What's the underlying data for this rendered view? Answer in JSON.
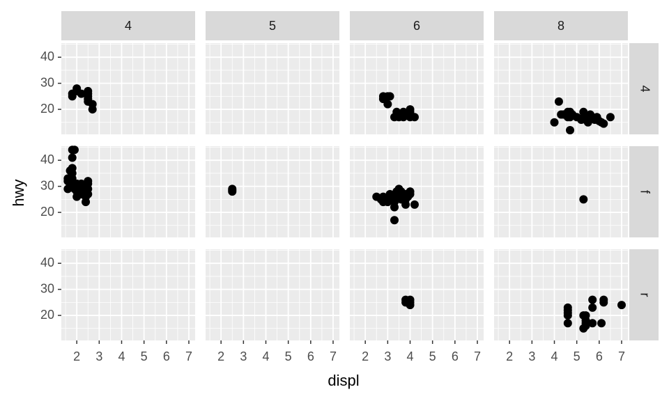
{
  "chart_data": {
    "type": "scatter",
    "x_label": "displ",
    "y_label": "hwy",
    "col_labels": [
      "4",
      "5",
      "6",
      "8"
    ],
    "row_labels": [
      "4",
      "f",
      "r"
    ],
    "xlim": [
      1.31,
      7.28
    ],
    "ylim": [
      10.4,
      45.4
    ],
    "xticks": [
      2,
      3,
      4,
      5,
      6,
      7
    ],
    "yticks": [
      20,
      30,
      40
    ],
    "color": "#000000",
    "grid": true,
    "panels": [
      [
        {
          "x": [
            1.8,
            1.8,
            2.0,
            2.0,
            2.2,
            2.5,
            2.5,
            2.5,
            2.5,
            2.7,
            2.7,
            2.5
          ],
          "values": [
            25,
            26,
            28,
            27,
            26,
            27,
            26,
            25,
            23,
            22,
            20,
            24
          ]
        },
        {
          "x": [],
          "values": []
        },
        {
          "x": [
            2.8,
            2.8,
            3.0,
            3.0,
            3.1,
            3.3,
            3.4,
            3.5,
            3.7,
            3.7,
            4.0,
            4.0,
            4.0,
            4.2,
            3.8
          ],
          "values": [
            25,
            24,
            25,
            22,
            25,
            17,
            19,
            17,
            19,
            17,
            20,
            17,
            19,
            17,
            18
          ]
        },
        {
          "x": [
            4.0,
            4.2,
            4.3,
            4.6,
            4.6,
            4.7,
            4.7,
            4.7,
            5.3,
            5.3,
            5.4,
            5.6,
            5.7,
            5.9,
            6.1,
            6.5,
            5.0,
            5.2,
            4.8,
            5.5,
            6.0,
            5.8,
            6.2,
            4.4
          ],
          "values": [
            15,
            23,
            18,
            19,
            17,
            12,
            17,
            19,
            19,
            17,
            16,
            18,
            17,
            17,
            15,
            17,
            17,
            16,
            18,
            15,
            15.5,
            16,
            14.5,
            18
          ]
        }
      ],
      [
        {
          "x": [
            1.6,
            1.6,
            1.6,
            1.8,
            1.8,
            1.8,
            1.8,
            1.8,
            1.8,
            1.9,
            1.9,
            2.0,
            2.0,
            2.0,
            2.0,
            2.0,
            2.2,
            2.2,
            2.2,
            2.4,
            2.4,
            2.4,
            2.4,
            2.5,
            2.5,
            2.5,
            2.5,
            1.7,
            1.7,
            2.1
          ],
          "values": [
            33,
            32,
            29,
            44,
            41,
            37,
            35,
            33,
            30,
            44,
            29,
            31,
            29,
            28,
            26,
            30,
            27,
            29,
            31,
            30,
            27,
            24,
            26,
            32,
            31,
            29,
            27,
            36,
            30,
            28
          ]
        },
        {
          "x": [
            2.5,
            2.5,
            2.5
          ],
          "values": [
            28,
            29,
            28.5
          ]
        },
        {
          "x": [
            2.5,
            2.7,
            2.8,
            2.8,
            3.0,
            3.1,
            3.3,
            3.3,
            3.3,
            3.4,
            3.5,
            3.5,
            3.6,
            3.8,
            3.8,
            3.8,
            3.9,
            3.9,
            4.0,
            4.0,
            4.2,
            3.3,
            3.6,
            3.1
          ],
          "values": [
            26,
            25,
            24,
            26,
            24,
            26,
            22,
            24,
            17,
            28,
            26,
            29,
            28,
            27,
            25,
            23,
            27,
            26,
            28,
            27,
            23,
            26,
            25,
            27
          ]
        },
        {
          "x": [
            5.3
          ],
          "values": [
            25
          ]
        }
      ],
      [
        {
          "x": [],
          "values": []
        },
        {
          "x": [],
          "values": []
        },
        {
          "x": [
            3.8,
            3.8,
            4.0,
            4.0,
            4.0
          ],
          "values": [
            26,
            25,
            26,
            24,
            25
          ]
        },
        {
          "x": [
            4.6,
            4.6,
            4.6,
            4.6,
            4.6,
            5.3,
            5.3,
            5.4,
            5.4,
            5.4,
            5.7,
            5.7,
            5.7,
            6.1,
            6.2,
            6.2,
            7.0,
            5.4
          ],
          "values": [
            23,
            22,
            21,
            20,
            17,
            20,
            15,
            18,
            17,
            16,
            26,
            23,
            17,
            17,
            26,
            25,
            24,
            20
          ]
        }
      ]
    ]
  }
}
